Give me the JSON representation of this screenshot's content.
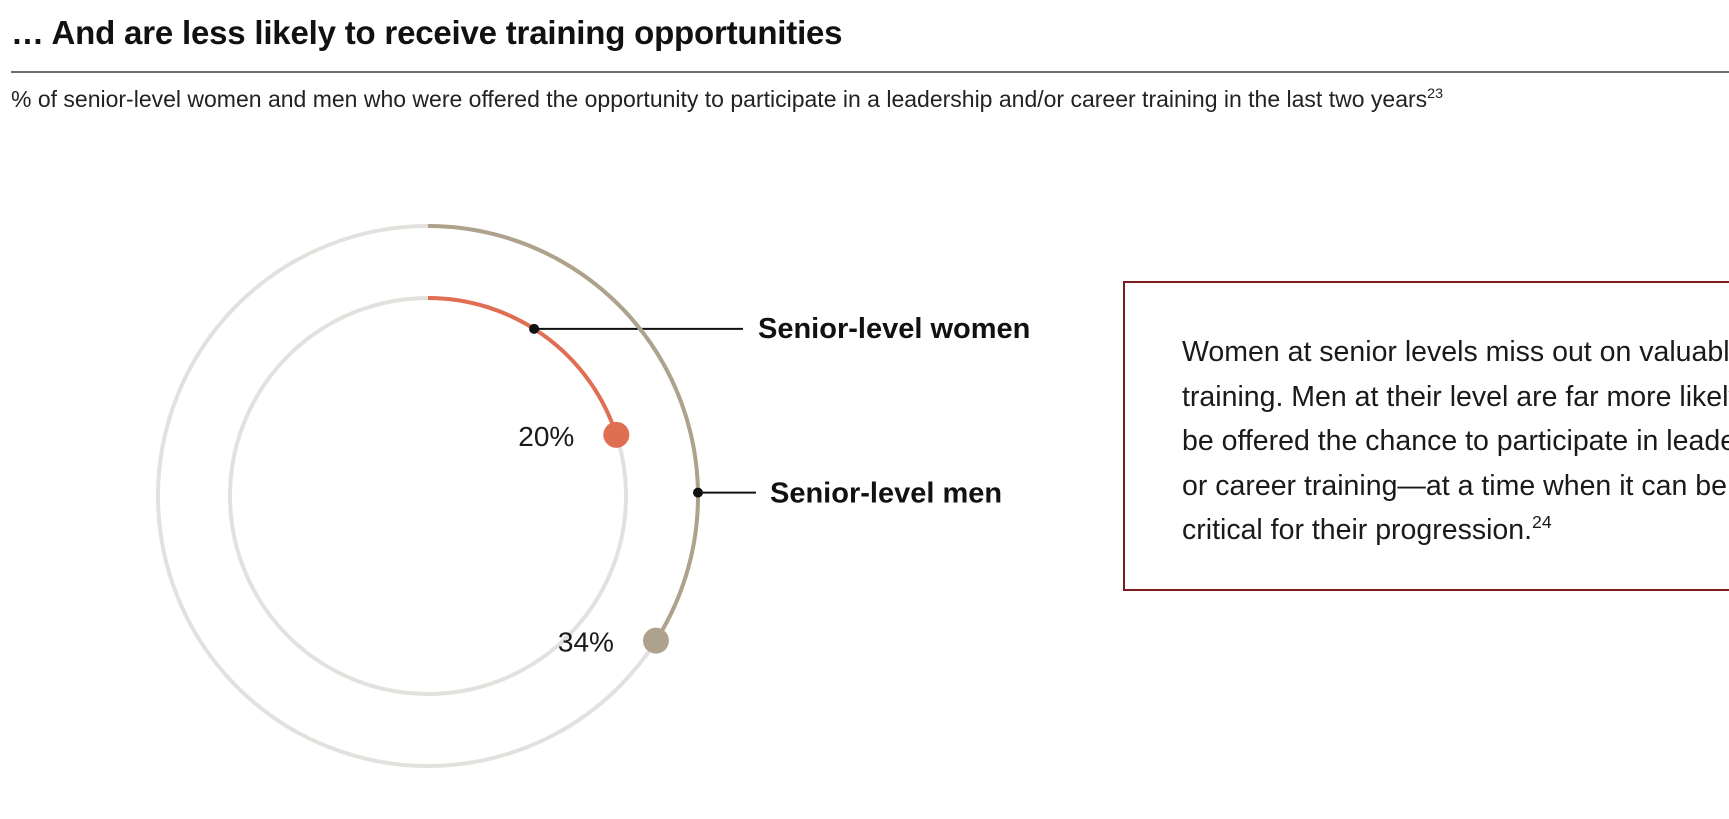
{
  "header": {
    "title": "… And are less likely to receive training opportunities",
    "subtitle": "% of senior-level women and men who were offered the opportunity to participate in a leadership and/or career training in the last two years",
    "subtitle_footnote": "23"
  },
  "chart_data": {
    "type": "radial-bar",
    "title": "… And are less likely to receive training opportunities",
    "unit": "%",
    "series": [
      {
        "name": "Senior-level women",
        "value": 20,
        "label": "20%",
        "color": "#e06e53"
      },
      {
        "name": "Senior-level men",
        "value": 34,
        "label": "34%",
        "color": "#aea28c"
      }
    ],
    "scale_max": 100,
    "track_color": "#e3e1de"
  },
  "callout": {
    "lines": [
      "Women at senior levels miss out on valuable",
      "training. Men at their level are far more likely to",
      "be offered the chance to participate in leadership",
      "or career training—at a time when it can be",
      "critical for their progression."
    ],
    "footnote": "24",
    "border_color": "#7d1b1f"
  }
}
